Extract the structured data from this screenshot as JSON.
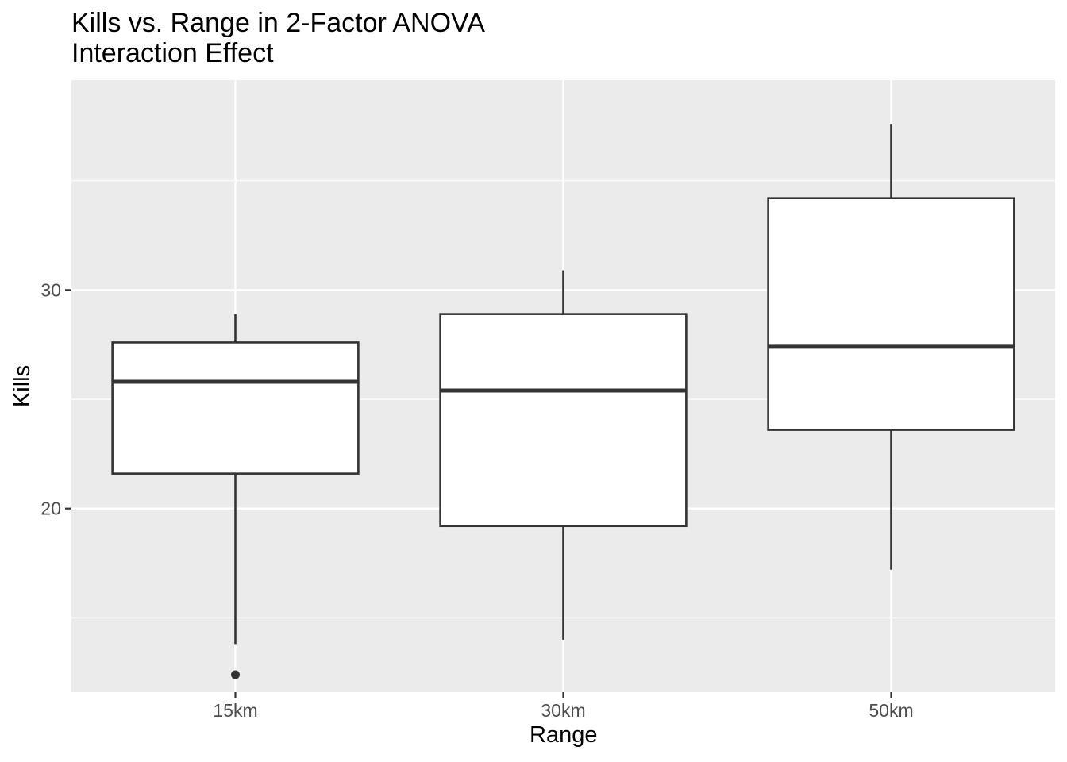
{
  "chart_data": {
    "type": "box",
    "title": "Kills vs. Range in 2-Factor ANOVA",
    "subtitle": "Interaction Effect",
    "xlabel": "Range",
    "ylabel": "Kills",
    "categories": [
      "15km",
      "30km",
      "50km"
    ],
    "boxes": [
      {
        "category": "15km",
        "lower_whisker": 13.8,
        "q1": 21.6,
        "median": 25.8,
        "q3": 27.6,
        "upper_whisker": 28.9,
        "outliers": [
          12.4
        ]
      },
      {
        "category": "30km",
        "lower_whisker": 14.0,
        "q1": 19.2,
        "median": 25.4,
        "q3": 28.9,
        "upper_whisker": 30.9,
        "outliers": []
      },
      {
        "category": "50km",
        "lower_whisker": 17.2,
        "q1": 23.6,
        "median": 27.4,
        "q3": 34.2,
        "upper_whisker": 37.6,
        "outliers": []
      }
    ],
    "yticks": [
      20,
      30
    ],
    "ylim": [
      11.6,
      39.6
    ],
    "grid": true,
    "colors": {
      "panel": "#ebebeb",
      "grid_major": "#ffffff",
      "box_fill": "#ffffff",
      "box_stroke": "#333333",
      "tick_label": "#4d4d4d",
      "axis_title": "#000000"
    }
  }
}
